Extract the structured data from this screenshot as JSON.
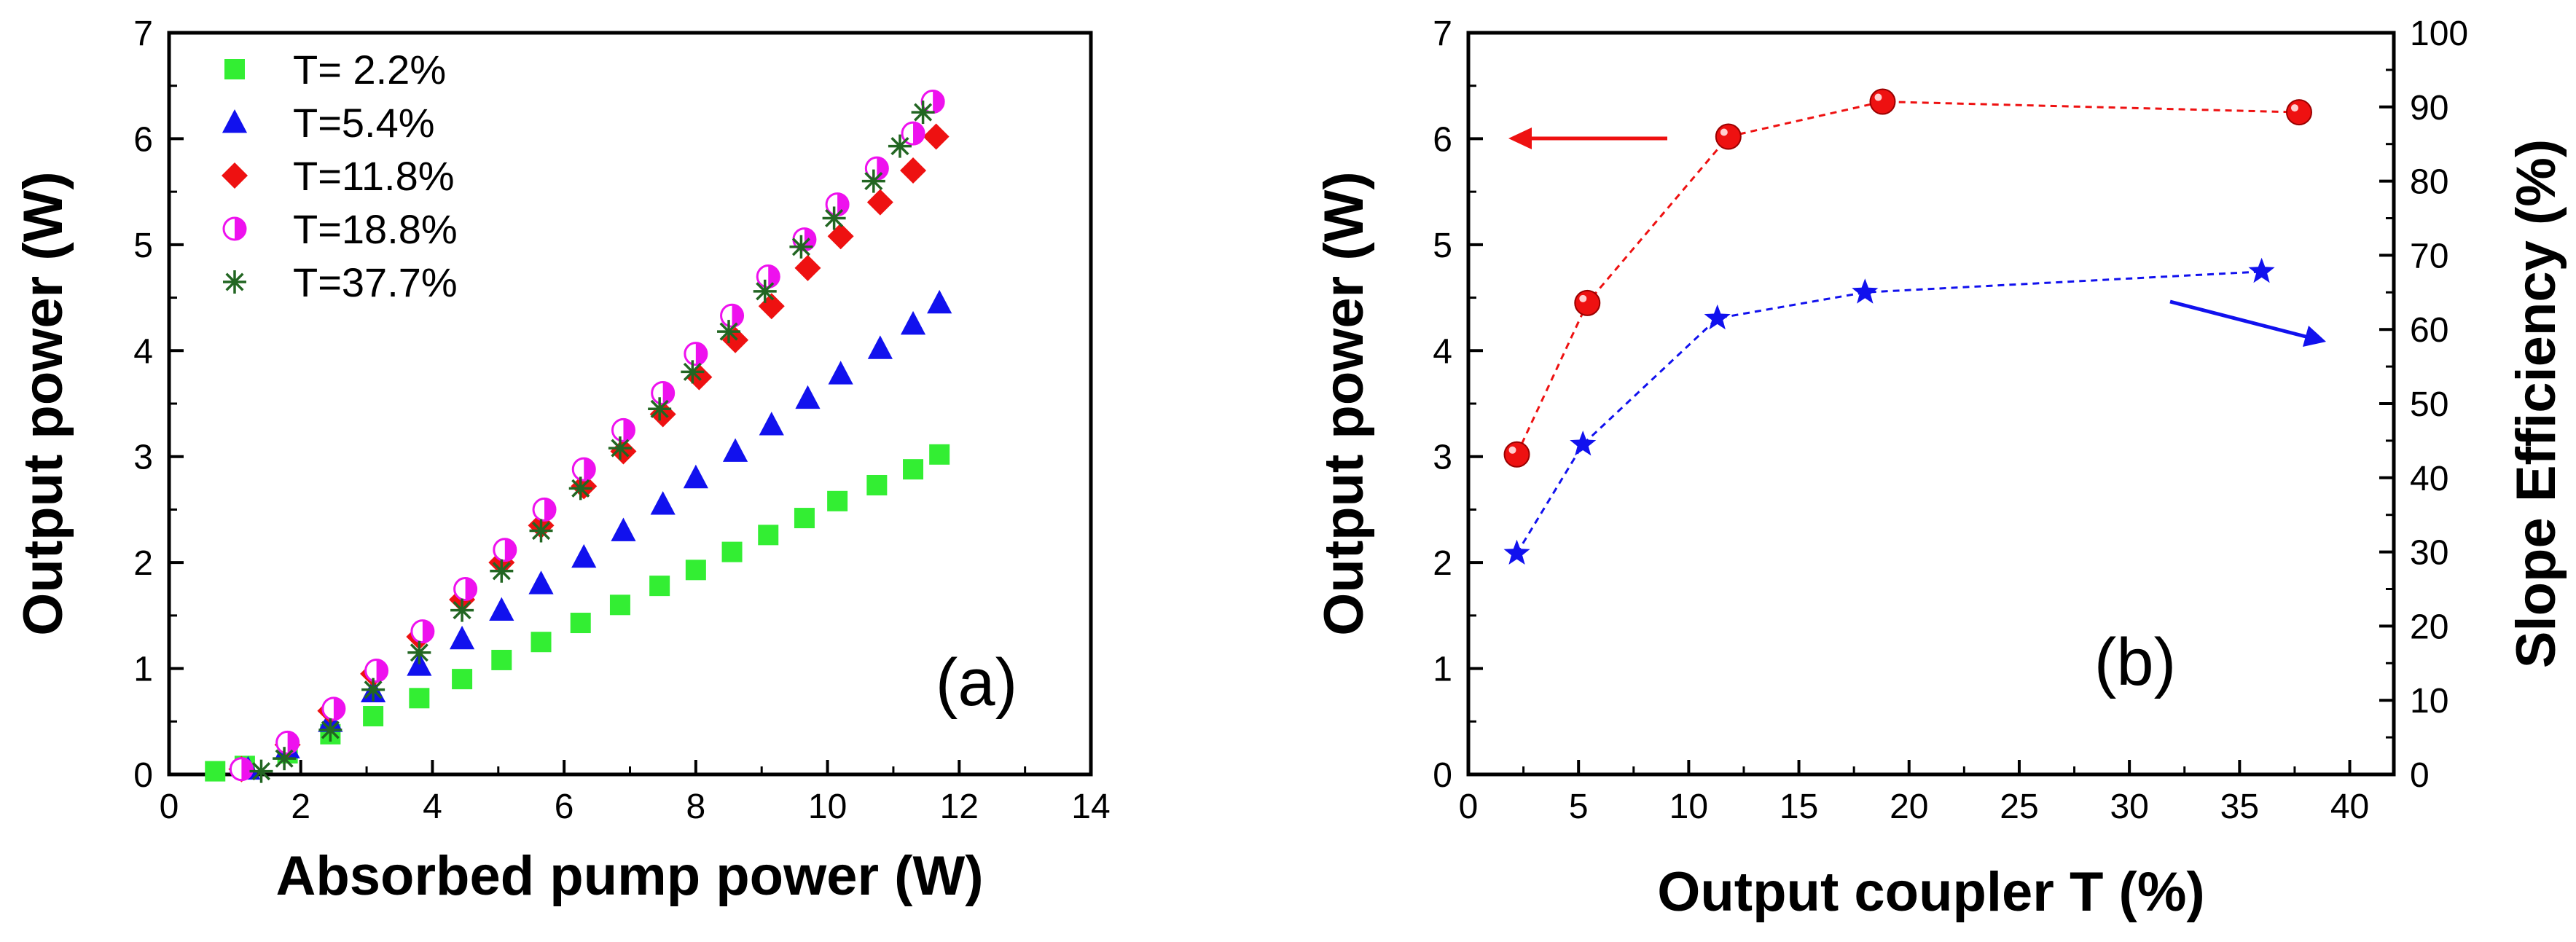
{
  "chart_data": [
    {
      "type": "scatter",
      "panel_label": "(a)",
      "xlabel": "Absorbed pump power (W)",
      "ylabel": "Output power (W)",
      "xlim": [
        0,
        14
      ],
      "ylim": [
        0,
        7
      ],
      "xticks": [
        "0",
        "2",
        "4",
        "6",
        "8",
        "10",
        "12",
        "14"
      ],
      "yticks": [
        "0",
        "1",
        "2",
        "3",
        "4",
        "5",
        "6",
        "7"
      ],
      "legend_position": "top-left",
      "series": [
        {
          "name": "T= 2.2%",
          "marker": "square",
          "color": "#33ee33",
          "x": [
            0.7,
            1.15,
            1.8,
            2.45,
            3.1,
            3.8,
            4.45,
            5.05,
            5.65,
            6.25,
            6.85,
            7.45,
            8.0,
            8.55,
            9.1,
            9.65,
            10.15,
            10.75,
            11.3,
            11.7
          ],
          "y": [
            0.03,
            0.08,
            0.2,
            0.38,
            0.55,
            0.72,
            0.9,
            1.08,
            1.25,
            1.43,
            1.6,
            1.78,
            1.93,
            2.1,
            2.26,
            2.42,
            2.58,
            2.73,
            2.88,
            3.02
          ]
        },
        {
          "name": "T=5.4%",
          "marker": "triangle",
          "color": "#1111ee",
          "x": [
            1.2,
            1.8,
            2.45,
            3.1,
            3.8,
            4.45,
            5.05,
            5.65,
            6.3,
            6.9,
            7.5,
            8.0,
            8.6,
            9.15,
            9.7,
            10.2,
            10.8,
            11.3,
            11.7
          ],
          "y": [
            0.05,
            0.25,
            0.5,
            0.78,
            1.03,
            1.28,
            1.55,
            1.8,
            2.05,
            2.3,
            2.55,
            2.8,
            3.05,
            3.3,
            3.55,
            3.78,
            4.02,
            4.25,
            4.45
          ]
        },
        {
          "name": "T=11.8%",
          "marker": "diamond",
          "color": "#ee1111",
          "x": [
            1.1,
            1.8,
            2.45,
            3.1,
            3.8,
            4.45,
            5.05,
            5.65,
            6.3,
            6.9,
            7.5,
            8.05,
            8.6,
            9.15,
            9.7,
            10.2,
            10.8,
            11.3,
            11.65
          ],
          "y": [
            0.05,
            0.28,
            0.6,
            0.95,
            1.3,
            1.65,
            2.0,
            2.35,
            2.72,
            3.05,
            3.4,
            3.75,
            4.1,
            4.42,
            4.78,
            5.08,
            5.4,
            5.7,
            6.02
          ]
        },
        {
          "name": "T=18.8%",
          "marker": "half-circle",
          "color": "#ee11ee",
          "x": [
            1.1,
            1.8,
            2.5,
            3.15,
            3.85,
            4.5,
            5.1,
            5.7,
            6.3,
            6.9,
            7.5,
            8.0,
            8.55,
            9.1,
            9.65,
            10.15,
            10.75,
            11.3,
            11.6
          ],
          "y": [
            0.05,
            0.3,
            0.62,
            0.98,
            1.35,
            1.75,
            2.12,
            2.5,
            2.88,
            3.25,
            3.6,
            3.97,
            4.33,
            4.7,
            5.05,
            5.38,
            5.72,
            6.05,
            6.35
          ]
        },
        {
          "name": "T=37.7%",
          "marker": "asterisk",
          "color": "#226622",
          "x": [
            1.4,
            1.75,
            2.45,
            3.1,
            3.8,
            4.45,
            5.05,
            5.65,
            6.25,
            6.85,
            7.45,
            7.95,
            8.5,
            9.05,
            9.6,
            10.1,
            10.7,
            11.1,
            11.45
          ],
          "y": [
            0.03,
            0.15,
            0.42,
            0.8,
            1.15,
            1.55,
            1.92,
            2.3,
            2.7,
            3.08,
            3.45,
            3.8,
            4.18,
            4.56,
            4.98,
            5.25,
            5.6,
            5.93,
            6.25
          ]
        }
      ]
    },
    {
      "type": "line",
      "panel_label": "(b)",
      "xlabel": "Output coupler T (%)",
      "ylabel": "Output power (W)",
      "y2label": "Slope Efficiency (%)",
      "xlim": [
        0,
        42
      ],
      "ylim": [
        0,
        7
      ],
      "y2lim": [
        0,
        100
      ],
      "xticks": [
        "0",
        "5",
        "10",
        "15",
        "20",
        "25",
        "30",
        "35",
        "40"
      ],
      "yticks": [
        "0",
        "1",
        "2",
        "3",
        "4",
        "5",
        "6",
        "7"
      ],
      "y2ticks": [
        "0",
        "10",
        "20",
        "30",
        "40",
        "50",
        "60",
        "70",
        "80",
        "90",
        "100"
      ],
      "series": [
        {
          "name": "Output power",
          "axis": "left",
          "marker": "sphere",
          "color": "#ee1111",
          "x": [
            2.2,
            5.4,
            11.8,
            18.8,
            37.7
          ],
          "y": [
            3.02,
            4.45,
            6.02,
            6.35,
            6.25
          ]
        },
        {
          "name": "Slope efficiency",
          "axis": "right",
          "marker": "star",
          "color": "#1111ee",
          "x": [
            2.2,
            5.2,
            11.3,
            18.0,
            36.0
          ],
          "y": [
            29.8,
            44.5,
            61.5,
            65.0,
            67.8
          ]
        }
      ]
    }
  ]
}
